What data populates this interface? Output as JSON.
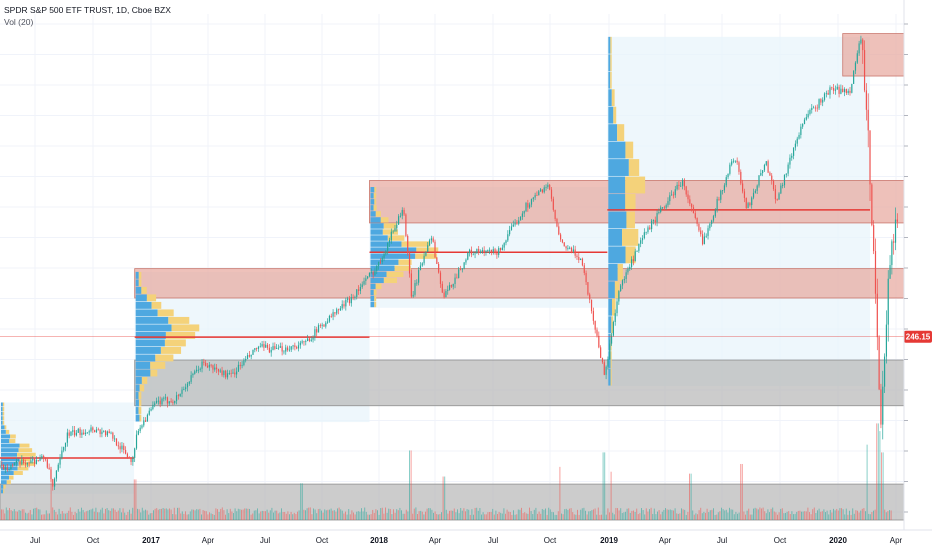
{
  "header": {
    "title": "SPDR S&P 500 ETF TRUST, 1D, Cboe BZX",
    "volume_label": "Vol (20)"
  },
  "price_badge": {
    "value": "246.15",
    "color": "#e53935"
  },
  "colors": {
    "up_candle": "#26a69a",
    "down_candle": "#ef5350",
    "poc_line": "#e53935",
    "supply_zone": "#e8a9a0",
    "demand_zone": "#b9b9b9",
    "profile_bg": "#e8f4fb",
    "vp_blue": "#4ea8e0",
    "vp_yellow": "#f4d27a",
    "vp_orange": "#f0a868",
    "vp_purple": "#9a8aa8"
  },
  "chart_data": {
    "type": "candlestick",
    "title": "SPDR S&P 500 ETF TRUST, 1D, Cboe BZX",
    "indicator": "Vol (20)",
    "x_axis": {
      "ticks": [
        "Jul",
        "Oct",
        "2017",
        "Apr",
        "Jul",
        "Oct",
        "2018",
        "Apr",
        "Jul",
        "Oct",
        "2019",
        "Apr",
        "Jul",
        "Oct",
        "2020",
        "Apr"
      ],
      "bold_ticks": [
        "2017",
        "2018",
        "2019",
        "2020"
      ],
      "range": [
        "2016-04-01",
        "2020-04-30"
      ]
    },
    "y_axis": {
      "range": [
        190,
        345
      ],
      "grid": true,
      "last_price": 246.15
    },
    "price_path": [
      [
        "2016-04-01",
        206
      ],
      [
        "2016-06-15",
        209
      ],
      [
        "2016-06-27",
        200
      ],
      [
        "2016-07-20",
        216
      ],
      [
        "2016-09-01",
        218
      ],
      [
        "2016-10-01",
        216
      ],
      [
        "2016-11-04",
        208
      ],
      [
        "2016-11-15",
        218
      ],
      [
        "2016-12-15",
        226
      ],
      [
        "2017-01-15",
        227
      ],
      [
        "2017-03-01",
        238
      ],
      [
        "2017-04-15",
        234
      ],
      [
        "2017-06-01",
        243
      ],
      [
        "2017-07-01",
        242
      ],
      [
        "2017-08-15",
        244
      ],
      [
        "2017-09-15",
        250
      ],
      [
        "2017-11-01",
        258
      ],
      [
        "2017-12-15",
        268
      ],
      [
        "2018-01-26",
        286
      ],
      [
        "2018-02-08",
        258
      ],
      [
        "2018-03-12",
        278
      ],
      [
        "2018-04-02",
        258
      ],
      [
        "2018-05-15",
        272
      ],
      [
        "2018-07-01",
        272
      ],
      [
        "2018-08-15",
        286
      ],
      [
        "2018-09-21",
        293
      ],
      [
        "2018-10-11",
        275
      ],
      [
        "2018-11-15",
        270
      ],
      [
        "2018-12-24",
        234
      ],
      [
        "2019-01-15",
        260
      ],
      [
        "2019-03-01",
        278
      ],
      [
        "2019-04-30",
        294
      ],
      [
        "2019-06-03",
        275
      ],
      [
        "2019-07-26",
        302
      ],
      [
        "2019-08-15",
        285
      ],
      [
        "2019-09-15",
        300
      ],
      [
        "2019-10-03",
        288
      ],
      [
        "2019-11-15",
        312
      ],
      [
        "2019-12-31",
        322
      ],
      [
        "2020-01-31",
        321
      ],
      [
        "2020-02-19",
        338
      ],
      [
        "2020-03-02",
        305
      ],
      [
        "2020-03-23",
        222
      ],
      [
        "2020-04-08",
        274
      ],
      [
        "2020-04-20",
        280
      ]
    ],
    "volume_spikes": [
      [
        "2016-06-24",
        0.55
      ],
      [
        "2016-11-09",
        0.42
      ],
      [
        "2017-08-10",
        0.38
      ],
      [
        "2018-02-05",
        0.72
      ],
      [
        "2018-04-02",
        0.45
      ],
      [
        "2018-10-10",
        0.55
      ],
      [
        "2018-12-21",
        0.7
      ],
      [
        "2019-01-03",
        0.5
      ],
      [
        "2019-05-13",
        0.48
      ],
      [
        "2019-08-05",
        0.58
      ],
      [
        "2020-02-28",
        0.78
      ],
      [
        "2020-03-16",
        1.0
      ],
      [
        "2020-03-20",
        0.92
      ],
      [
        "2020-03-25",
        0.7
      ]
    ],
    "zones": [
      {
        "kind": "supply",
        "start": "2020-01-20",
        "end": "2020-04-30",
        "low": 326,
        "high": 339
      },
      {
        "kind": "supply",
        "start": "2017-12-01",
        "end": "2020-04-30",
        "low": 281,
        "high": 294
      },
      {
        "kind": "supply",
        "start": "2016-11-09",
        "end": "2020-04-30",
        "low": 258,
        "high": 267
      },
      {
        "kind": "demand",
        "start": "2016-11-09",
        "end": "2020-04-30",
        "low": 225,
        "high": 239
      },
      {
        "kind": "demand",
        "start": "2016-04-01",
        "end": "2020-04-30",
        "low": 190,
        "high": 201
      }
    ],
    "volume_profiles": [
      {
        "start": "2016-04-01",
        "end": "2016-11-08",
        "low": 198,
        "high": 226,
        "poc": 209,
        "poc_end": "2016-11-08"
      },
      {
        "start": "2016-11-09",
        "end": "2017-12-01",
        "low": 220,
        "high": 266,
        "poc": 246,
        "poc_end": "2017-12-01"
      },
      {
        "start": "2017-12-01",
        "end": "2018-12-28",
        "low": 255,
        "high": 292,
        "poc": 272,
        "poc_end": "2018-12-28"
      },
      {
        "start": "2018-12-28",
        "end": "2020-03-05",
        "low": 231,
        "high": 338,
        "poc": 285,
        "poc_end": "2020-03-05"
      }
    ]
  }
}
